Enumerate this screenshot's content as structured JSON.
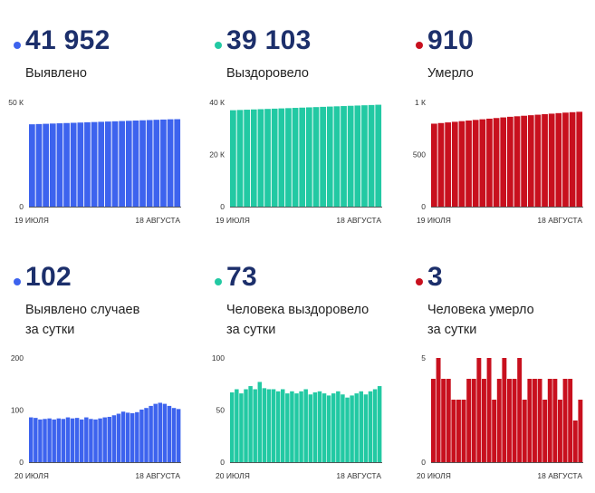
{
  "panels": [
    {
      "value": "41 952",
      "label_lines": [
        "Выявлено"
      ],
      "color": "#3d63ee",
      "chart_data": {
        "type": "bar",
        "y_ticks": [
          "50 К",
          "0"
        ],
        "x_labels": [
          "19 ИЮЛЯ",
          "18 АВГУСТА"
        ],
        "ylim": [
          0,
          50000
        ],
        "values": [
          39500,
          39620,
          39740,
          39860,
          39980,
          40100,
          40220,
          40340,
          40460,
          40580,
          40700,
          40820,
          40940,
          41060,
          41180,
          41300,
          41420,
          41540,
          41660,
          41780,
          41900,
          41952
        ]
      }
    },
    {
      "value": "39 103",
      "label_lines": [
        "Выздоровело"
      ],
      "color": "#22c9a3",
      "chart_data": {
        "type": "bar",
        "y_ticks": [
          "40 К",
          "20 К",
          "0"
        ],
        "x_labels": [
          "19 ИЮЛЯ",
          "18 АВГУСТА"
        ],
        "ylim": [
          0,
          40000
        ],
        "values": [
          37000,
          37100,
          37200,
          37300,
          37400,
          37500,
          37600,
          37700,
          37800,
          37900,
          38000,
          38100,
          38200,
          38300,
          38400,
          38500,
          38600,
          38700,
          38800,
          38900,
          39000,
          39103
        ]
      }
    },
    {
      "value": "910",
      "label_lines": [
        "Умерло"
      ],
      "color": "#c8101e",
      "chart_data": {
        "type": "bar",
        "y_ticks": [
          "1 К",
          "500",
          "0"
        ],
        "x_labels": [
          "19 ИЮЛЯ",
          "18 АВГУСТА"
        ],
        "ylim": [
          0,
          1000
        ],
        "values": [
          796,
          802,
          808,
          814,
          820,
          826,
          832,
          838,
          844,
          850,
          856,
          862,
          867,
          872,
          877,
          882,
          887,
          892,
          897,
          902,
          906,
          910
        ]
      }
    },
    {
      "value": "102",
      "label_lines": [
        "Выявлено случаев",
        "за сутки"
      ],
      "color": "#3d63ee",
      "chart_data": {
        "type": "bar",
        "y_ticks": [
          "200",
          "100",
          "0"
        ],
        "x_labels": [
          "20 ИЮЛЯ",
          "18 АВГУСТА"
        ],
        "ylim": [
          0,
          200
        ],
        "values": [
          86,
          85,
          82,
          83,
          84,
          82,
          84,
          83,
          86,
          84,
          85,
          82,
          86,
          83,
          82,
          84,
          86,
          87,
          90,
          93,
          97,
          95,
          94,
          96,
          101,
          104,
          108,
          112,
          114,
          112,
          108,
          104,
          102
        ]
      }
    },
    {
      "value": "73",
      "label_lines": [
        "Человека выздоровело",
        "за сутки"
      ],
      "color": "#22c9a3",
      "chart_data": {
        "type": "bar",
        "y_ticks": [
          "100",
          "50",
          "0"
        ],
        "x_labels": [
          "20 ИЮЛЯ",
          "18 АВГУСТА"
        ],
        "ylim": [
          0,
          100
        ],
        "values": [
          67,
          70,
          66,
          70,
          73,
          70,
          77,
          71,
          70,
          70,
          68,
          70,
          66,
          68,
          66,
          68,
          70,
          65,
          67,
          68,
          66,
          64,
          66,
          68,
          65,
          62,
          64,
          66,
          68,
          65,
          68,
          70,
          73
        ]
      }
    },
    {
      "value": "3",
      "label_lines": [
        "Человека умерло",
        "за сутки"
      ],
      "color": "#c8101e",
      "chart_data": {
        "type": "bar",
        "y_ticks": [
          "5",
          "0"
        ],
        "x_labels": [
          "20 ИЮЛЯ",
          "18 АВГУСТА"
        ],
        "ylim": [
          0,
          5
        ],
        "values": [
          4,
          5,
          4,
          4,
          3,
          3,
          3,
          4,
          4,
          5,
          4,
          5,
          3,
          4,
          5,
          4,
          4,
          5,
          3,
          4,
          4,
          4,
          3,
          4,
          4,
          3,
          4,
          4,
          2,
          3
        ]
      }
    }
  ]
}
